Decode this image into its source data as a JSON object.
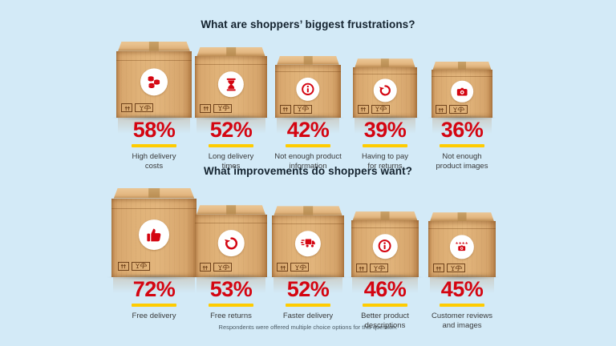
{
  "page": {
    "footnote": "Respondents were offered multiple choice options for this question."
  },
  "colors": {
    "accent_red": "#d40511",
    "accent_yellow": "#ffcc00",
    "background_top": "#c2e3f4",
    "background_bottom": "#d8edf8",
    "cardboard": "#ddab72",
    "title_text": "#13222e",
    "label_text": "#38393a"
  },
  "chart_data": [
    {
      "type": "bar",
      "style": "pictorial-cardboard-boxes",
      "title": "What are shoppers’ biggest frustrations?",
      "unit": "%",
      "ylim": [
        0,
        100
      ],
      "items": [
        {
          "label": "High delivery\ncosts",
          "value": 58,
          "icon": "coins"
        },
        {
          "label": "Long delivery\ntimes",
          "value": 52,
          "icon": "hourglass"
        },
        {
          "label": "Not enough product\ninformation",
          "value": 42,
          "icon": "info"
        },
        {
          "label": "Having to pay\nfor returns",
          "value": 39,
          "icon": "return-arrow"
        },
        {
          "label": "Not enough\nproduct images",
          "value": 36,
          "icon": "camera"
        }
      ]
    },
    {
      "type": "bar",
      "style": "pictorial-cardboard-boxes",
      "title": "What improvements do shoppers want?",
      "unit": "%",
      "ylim": [
        0,
        100
      ],
      "items": [
        {
          "label": "Free delivery",
          "value": 72,
          "icon": "thumbs-up"
        },
        {
          "label": "Free returns",
          "value": 53,
          "icon": "return-arrow"
        },
        {
          "label": "Faster delivery",
          "value": 52,
          "icon": "fast-truck"
        },
        {
          "label": "Better product\ndescriptions",
          "value": 46,
          "icon": "info"
        },
        {
          "label": "Customer reviews\nand images",
          "value": 45,
          "icon": "stars-camera"
        }
      ]
    }
  ]
}
